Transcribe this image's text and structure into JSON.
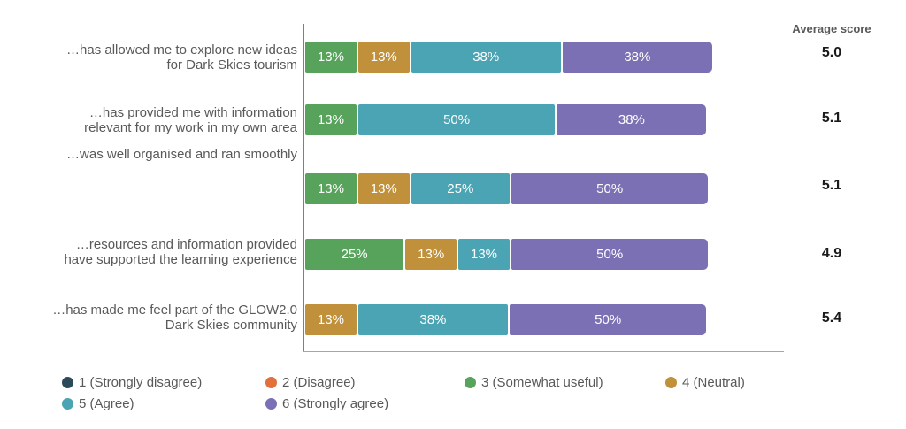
{
  "chart_data": {
    "type": "bar",
    "subtype": "horizontal-stacked",
    "unit": "percent",
    "title": "",
    "right_column_header": "Average score",
    "legend_position": "bottom",
    "legend": [
      {
        "label": "1 (Strongly disagree)",
        "color": "#2d4a5a"
      },
      {
        "label": "2 (Disagree)",
        "color": "#e2703d"
      },
      {
        "label": "3 (Somewhat useful)",
        "color": "#57a35c"
      },
      {
        "label": "4 (Neutral)",
        "color": "#c0903a"
      },
      {
        "label": "5 (Agree)",
        "color": "#4ba4b3"
      },
      {
        "label": "6 (Strongly agree)",
        "color": "#7b70b4"
      }
    ],
    "rows": [
      {
        "label_lines": [
          "…has allowed me to explore new ideas",
          "for Dark Skies tourism"
        ],
        "segments": [
          {
            "legend_index": 2,
            "pct": 13,
            "pct_label": "13%"
          },
          {
            "legend_index": 3,
            "pct": 13,
            "pct_label": "13%"
          },
          {
            "legend_index": 4,
            "pct": 38,
            "pct_label": "38%"
          },
          {
            "legend_index": 5,
            "pct": 38,
            "pct_label": "38%"
          }
        ],
        "average_score": "5.0"
      },
      {
        "label_lines": [
          "…has provided me with information",
          "relevant for my work in my own area"
        ],
        "segments": [
          {
            "legend_index": 2,
            "pct": 13,
            "pct_label": "13%"
          },
          {
            "legend_index": 4,
            "pct": 50,
            "pct_label": "50%"
          },
          {
            "legend_index": 5,
            "pct": 38,
            "pct_label": "38%"
          }
        ],
        "average_score": "5.1"
      },
      {
        "label_lines": [
          "…was well organised and ran smoothly"
        ],
        "segments": [
          {
            "legend_index": 2,
            "pct": 13,
            "pct_label": "13%"
          },
          {
            "legend_index": 3,
            "pct": 13,
            "pct_label": "13%"
          },
          {
            "legend_index": 4,
            "pct": 25,
            "pct_label": "25%"
          },
          {
            "legend_index": 5,
            "pct": 50,
            "pct_label": "50%"
          }
        ],
        "average_score": "5.1"
      },
      {
        "label_lines": [
          "…resources and information provided",
          "have supported the learning experience"
        ],
        "segments": [
          {
            "legend_index": 2,
            "pct": 25,
            "pct_label": "25%"
          },
          {
            "legend_index": 3,
            "pct": 13,
            "pct_label": "13%"
          },
          {
            "legend_index": 4,
            "pct": 13,
            "pct_label": "13%"
          },
          {
            "legend_index": 5,
            "pct": 50,
            "pct_label": "50%"
          }
        ],
        "average_score": "4.9"
      },
      {
        "label_lines": [
          "…has made me feel part of the GLOW2.0",
          "Dark Skies community"
        ],
        "segments": [
          {
            "legend_index": 3,
            "pct": 13,
            "pct_label": "13%"
          },
          {
            "legend_index": 4,
            "pct": 38,
            "pct_label": "38%"
          },
          {
            "legend_index": 5,
            "pct": 50,
            "pct_label": "50%"
          }
        ],
        "average_score": "5.4"
      }
    ]
  },
  "colors": {
    "label_text": "#595959",
    "score_text": "#1a1a1a",
    "axis_line": "#7f7f7f",
    "percent_text": "#ffffff"
  }
}
